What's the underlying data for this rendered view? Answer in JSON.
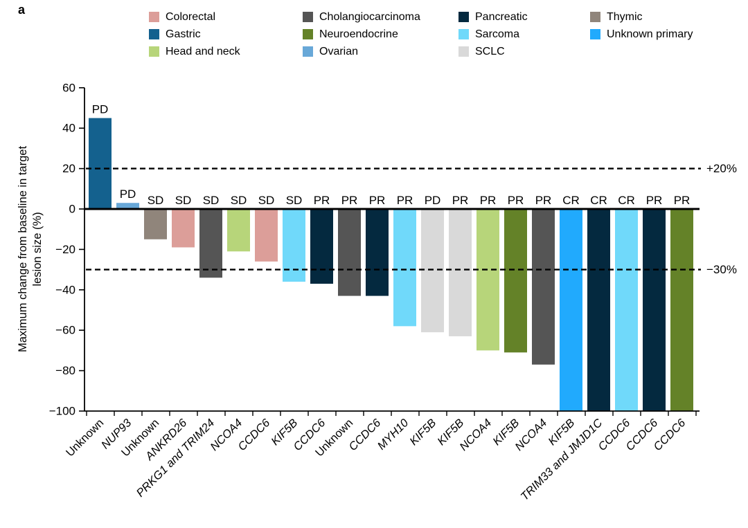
{
  "panel_label": "a",
  "chart_data": {
    "type": "bar",
    "title": "",
    "xlabel": "",
    "ylabel": "Maximum change from baseline in target lesion size (%)",
    "ylabel_lines": [
      "Maximum change from baseline in target",
      "lesion size (%)"
    ],
    "ylim": [
      -100,
      60
    ],
    "yticks": [
      60,
      40,
      20,
      0,
      -20,
      -40,
      -60,
      -80,
      -100
    ],
    "ytick_labels": [
      "60",
      "40",
      "20",
      "0",
      "−20",
      "−40",
      "−60",
      "−80",
      "−100"
    ],
    "grid": false,
    "legend_position": "top",
    "zero_line": true,
    "reference_lines": [
      {
        "value": 20,
        "label": "+20%"
      },
      {
        "value": -30,
        "label": "−30%"
      }
    ],
    "tumor_colors": {
      "Colorectal": "#DC9E99",
      "Gastric": "#14618E",
      "Head and neck": "#B7D57A",
      "Cholangiocarcinoma": "#555555",
      "Neuroendocrine": "#648228",
      "Ovarian": "#68A8D8",
      "Pancreatic": "#04293F",
      "Sarcoma": "#70D9FA",
      "SCLC": "#D9D9D9",
      "Thymic": "#90857B",
      "Unknown primary": "#21AAFD"
    },
    "legend_columns": [
      [
        "Colorectal",
        "Gastric",
        "Head and neck"
      ],
      [
        "Cholangiocarcinoma",
        "Neuroendocrine",
        "Ovarian"
      ],
      [
        "Pancreatic",
        "Sarcoma",
        "SCLC"
      ],
      [
        "Thymic",
        "Unknown primary"
      ]
    ],
    "bars": [
      {
        "gene": "Unknown",
        "italic": false,
        "tumor": "Gastric",
        "response": "PD",
        "value": 45
      },
      {
        "gene": "NUP93",
        "italic": true,
        "tumor": "Ovarian",
        "response": "PD",
        "value": 3
      },
      {
        "gene": "Unknown",
        "italic": false,
        "tumor": "Thymic",
        "response": "SD",
        "value": -15
      },
      {
        "gene": "ANKRD26",
        "italic": true,
        "tumor": "Colorectal",
        "response": "SD",
        "value": -19
      },
      {
        "gene": "PRKG1 and TRIM24",
        "italic": true,
        "tumor": "Cholangiocarcinoma",
        "response": "SD",
        "value": -34
      },
      {
        "gene": "NCOA4",
        "italic": true,
        "tumor": "Head and neck",
        "response": "SD",
        "value": -21
      },
      {
        "gene": "CCDC6",
        "italic": true,
        "tumor": "Colorectal",
        "response": "SD",
        "value": -26
      },
      {
        "gene": "KIF5B",
        "italic": true,
        "tumor": "Sarcoma",
        "response": "SD",
        "value": -36
      },
      {
        "gene": "CCDC6",
        "italic": true,
        "tumor": "Pancreatic",
        "response": "PR",
        "value": -37
      },
      {
        "gene": "Unknown",
        "italic": false,
        "tumor": "Cholangiocarcinoma",
        "response": "PR",
        "value": -43
      },
      {
        "gene": "CCDC6",
        "italic": true,
        "tumor": "Pancreatic",
        "response": "PR",
        "value": -43
      },
      {
        "gene": "MYH10",
        "italic": true,
        "tumor": "Sarcoma",
        "response": "PR",
        "value": -58
      },
      {
        "gene": "KIF5B",
        "italic": true,
        "tumor": "SCLC",
        "response": "PD",
        "value": -61
      },
      {
        "gene": "KIF5B",
        "italic": true,
        "tumor": "SCLC",
        "response": "PR",
        "value": -63
      },
      {
        "gene": "NCOA4",
        "italic": true,
        "tumor": "Head and neck",
        "response": "PR",
        "value": -70
      },
      {
        "gene": "KIF5B",
        "italic": true,
        "tumor": "Neuroendocrine",
        "response": "PR",
        "value": -71
      },
      {
        "gene": "NCOA4",
        "italic": true,
        "tumor": "Cholangiocarcinoma",
        "response": "PR",
        "value": -77
      },
      {
        "gene": "KIF5B",
        "italic": true,
        "tumor": "Unknown primary",
        "response": "CR",
        "value": -100
      },
      {
        "gene": "TRIM33 and JMJD1C",
        "italic": true,
        "tumor": "Pancreatic",
        "response": "CR",
        "value": -100
      },
      {
        "gene": "CCDC6",
        "italic": true,
        "tumor": "Sarcoma",
        "response": "CR",
        "value": -100
      },
      {
        "gene": "CCDC6",
        "italic": true,
        "tumor": "Pancreatic",
        "response": "PR",
        "value": -100
      },
      {
        "gene": "CCDC6",
        "italic": true,
        "tumor": "Neuroendocrine",
        "response": "PR",
        "value": -100
      }
    ]
  }
}
